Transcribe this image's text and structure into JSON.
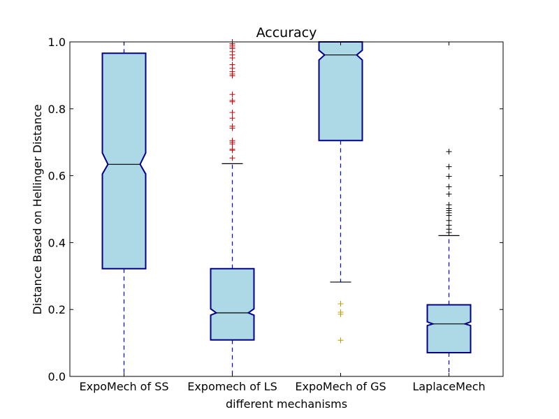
{
  "chart_data": {
    "type": "box",
    "title": "Accuracy",
    "xlabel": "different mechanisms",
    "ylabel": "Distance Based on Hellinger Distance",
    "ylim": [
      0.0,
      1.0
    ],
    "yticks": [
      "0.0",
      "0.2",
      "0.4",
      "0.6",
      "0.8",
      "1.0"
    ],
    "grid": false,
    "notched": true,
    "box_fill": "#add8e6",
    "box_edge": "#00008b",
    "whisker_color": "#0000ff",
    "categories": [
      "ExpoMech of SS",
      "Expomech of LS",
      "ExpoMech of GS",
      "LaplaceMech"
    ],
    "boxes": [
      {
        "name": "ExpoMech of SS",
        "whisker_low": 0.0,
        "q1": 0.322,
        "median": 0.634,
        "q3": 0.966,
        "whisker_high": 1.0,
        "notch_low": 0.605,
        "notch_high": 0.668,
        "cap_low": false,
        "cap_high": false,
        "flier_color": "#000000",
        "fliers": []
      },
      {
        "name": "Expomech of LS",
        "whisker_low": 0.0,
        "q1": 0.109,
        "median": 0.19,
        "q3": 0.322,
        "whisker_high": 0.636,
        "notch_low": 0.183,
        "notch_high": 0.202,
        "cap_low": false,
        "cap_high": true,
        "flier_color": "#cc0000",
        "fliers": [
          0.653,
          0.676,
          0.679,
          0.695,
          0.7,
          0.705,
          0.742,
          0.748,
          0.772,
          0.789,
          0.821,
          0.825,
          0.843,
          0.899,
          0.904,
          0.911,
          0.921,
          0.932,
          0.952,
          0.961,
          0.971,
          0.98,
          0.985,
          0.99,
          0.995,
          1.0
        ]
      },
      {
        "name": "ExpoMech of GS",
        "whisker_low": 0.282,
        "q1": 0.705,
        "median": 0.961,
        "q3": 1.0,
        "whisker_high": 1.0,
        "notch_low": 0.946,
        "notch_high": 0.975,
        "cap_low": true,
        "cap_high": false,
        "flier_color": "#b8a000",
        "fliers": [
          0.108,
          0.186,
          0.192,
          0.217
        ]
      },
      {
        "name": "LaplaceMech",
        "whisker_low": 0.0,
        "q1": 0.071,
        "median": 0.157,
        "q3": 0.214,
        "whisker_high": 0.421,
        "notch_low": 0.152,
        "notch_high": 0.163,
        "cap_low": false,
        "cap_high": true,
        "flier_color": "#000000",
        "fliers": [
          0.43,
          0.44,
          0.452,
          0.466,
          0.481,
          0.489,
          0.496,
          0.502,
          0.513,
          0.545,
          0.567,
          0.598,
          0.627,
          0.672
        ]
      }
    ]
  }
}
